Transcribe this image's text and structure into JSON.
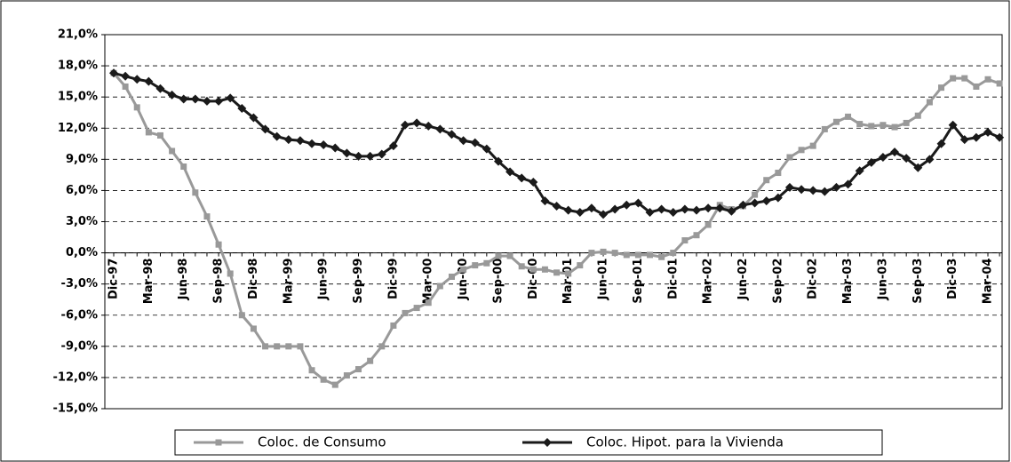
{
  "chart_data": {
    "type": "line",
    "categories": [
      "Dic-97",
      null,
      null,
      "Mar-98",
      null,
      null,
      "Jun-98",
      null,
      null,
      "Sep-98",
      null,
      null,
      "Dic-98",
      null,
      null,
      "Mar-99",
      null,
      null,
      "Jun-99",
      null,
      null,
      "Sep-99",
      null,
      null,
      "Dic-99",
      null,
      null,
      "Mar-00",
      null,
      null,
      "Jun-00",
      null,
      null,
      "Sep-00",
      null,
      null,
      "Dic-00",
      null,
      null,
      "Mar-01",
      null,
      null,
      "Jun-01",
      null,
      null,
      "Sep-01",
      null,
      null,
      "Dic-01",
      null,
      null,
      "Mar-02",
      null,
      null,
      "Jun-02",
      null,
      null,
      "Sep-02",
      null,
      null,
      "Dic-02",
      null,
      null,
      "Mar-03",
      null,
      null,
      "Jun-03",
      null,
      null,
      "Sep-03",
      null,
      null,
      "Dic-03",
      null,
      null,
      "Mar-04",
      null
    ],
    "series": [
      {
        "name": "Coloc. de Consumo",
        "color": "#999999",
        "marker": "square",
        "values": [
          17.3,
          16.0,
          14.0,
          11.6,
          11.3,
          9.8,
          8.3,
          5.8,
          3.5,
          0.8,
          -2.0,
          -6.0,
          -7.3,
          -9.0,
          -9.0,
          -9.0,
          -9.0,
          -11.3,
          -12.2,
          -12.7,
          -11.8,
          -11.2,
          -10.4,
          -9.0,
          -7.0,
          -5.8,
          -5.3,
          -4.8,
          -3.2,
          -2.3,
          -1.6,
          -1.2,
          -1.0,
          -0.3,
          -0.3,
          -1.3,
          -1.6,
          -1.6,
          -1.9,
          -2.0,
          -1.2,
          0.0,
          0.1,
          0.0,
          -0.2,
          -0.2,
          -0.2,
          -0.4,
          0.0,
          1.2,
          1.7,
          2.7,
          4.6,
          4.2,
          4.5,
          5.6,
          7.0,
          7.7,
          9.2,
          9.9,
          10.3,
          11.9,
          12.6,
          13.1,
          12.4,
          12.2,
          12.3,
          12.1,
          12.5,
          13.2,
          14.5,
          15.9,
          16.8,
          16.8,
          16.0,
          16.7,
          16.3
        ]
      },
      {
        "name": "Coloc. Hipot. para la Vivienda",
        "color": "#1a1a1a",
        "marker": "diamond",
        "values": [
          17.3,
          17.0,
          16.7,
          16.5,
          15.8,
          15.2,
          14.8,
          14.8,
          14.6,
          14.6,
          14.9,
          13.9,
          13.0,
          11.9,
          11.2,
          10.9,
          10.8,
          10.5,
          10.4,
          10.1,
          9.6,
          9.3,
          9.3,
          9.5,
          10.3,
          12.3,
          12.5,
          12.2,
          11.9,
          11.4,
          10.8,
          10.6,
          10.0,
          8.8,
          7.8,
          7.2,
          6.8,
          5.0,
          4.5,
          4.1,
          3.9,
          4.3,
          3.7,
          4.2,
          4.6,
          4.8,
          3.9,
          4.2,
          3.9,
          4.2,
          4.1,
          4.3,
          4.3,
          4.0,
          4.6,
          4.8,
          5.0,
          5.3,
          6.3,
          6.1,
          6.0,
          5.9,
          6.3,
          6.6,
          7.9,
          8.7,
          9.2,
          9.7,
          9.1,
          8.2,
          9.0,
          10.5,
          12.3,
          10.9,
          11.1,
          11.6,
          11.1
        ]
      }
    ],
    "ylim": [
      -15,
      21
    ],
    "yticks": [
      {
        "value": -15,
        "label": "-15,0%"
      },
      {
        "value": -12,
        "label": "-12,0%"
      },
      {
        "value": -9,
        "label": "-9,0%"
      },
      {
        "value": -6,
        "label": "-6,0%"
      },
      {
        "value": -3,
        "label": "-3,0%"
      },
      {
        "value": 0,
        "label": "0,0%"
      },
      {
        "value": 3,
        "label": "3,0%"
      },
      {
        "value": 6,
        "label": "6,0%"
      },
      {
        "value": 9,
        "label": "9,0%"
      },
      {
        "value": 12,
        "label": "12,0%"
      },
      {
        "value": 15,
        "label": "15,0%"
      },
      {
        "value": 18,
        "label": "18,0%"
      },
      {
        "value": 21,
        "label": "21,0%"
      }
    ],
    "grid": true,
    "legend": "bottom"
  }
}
